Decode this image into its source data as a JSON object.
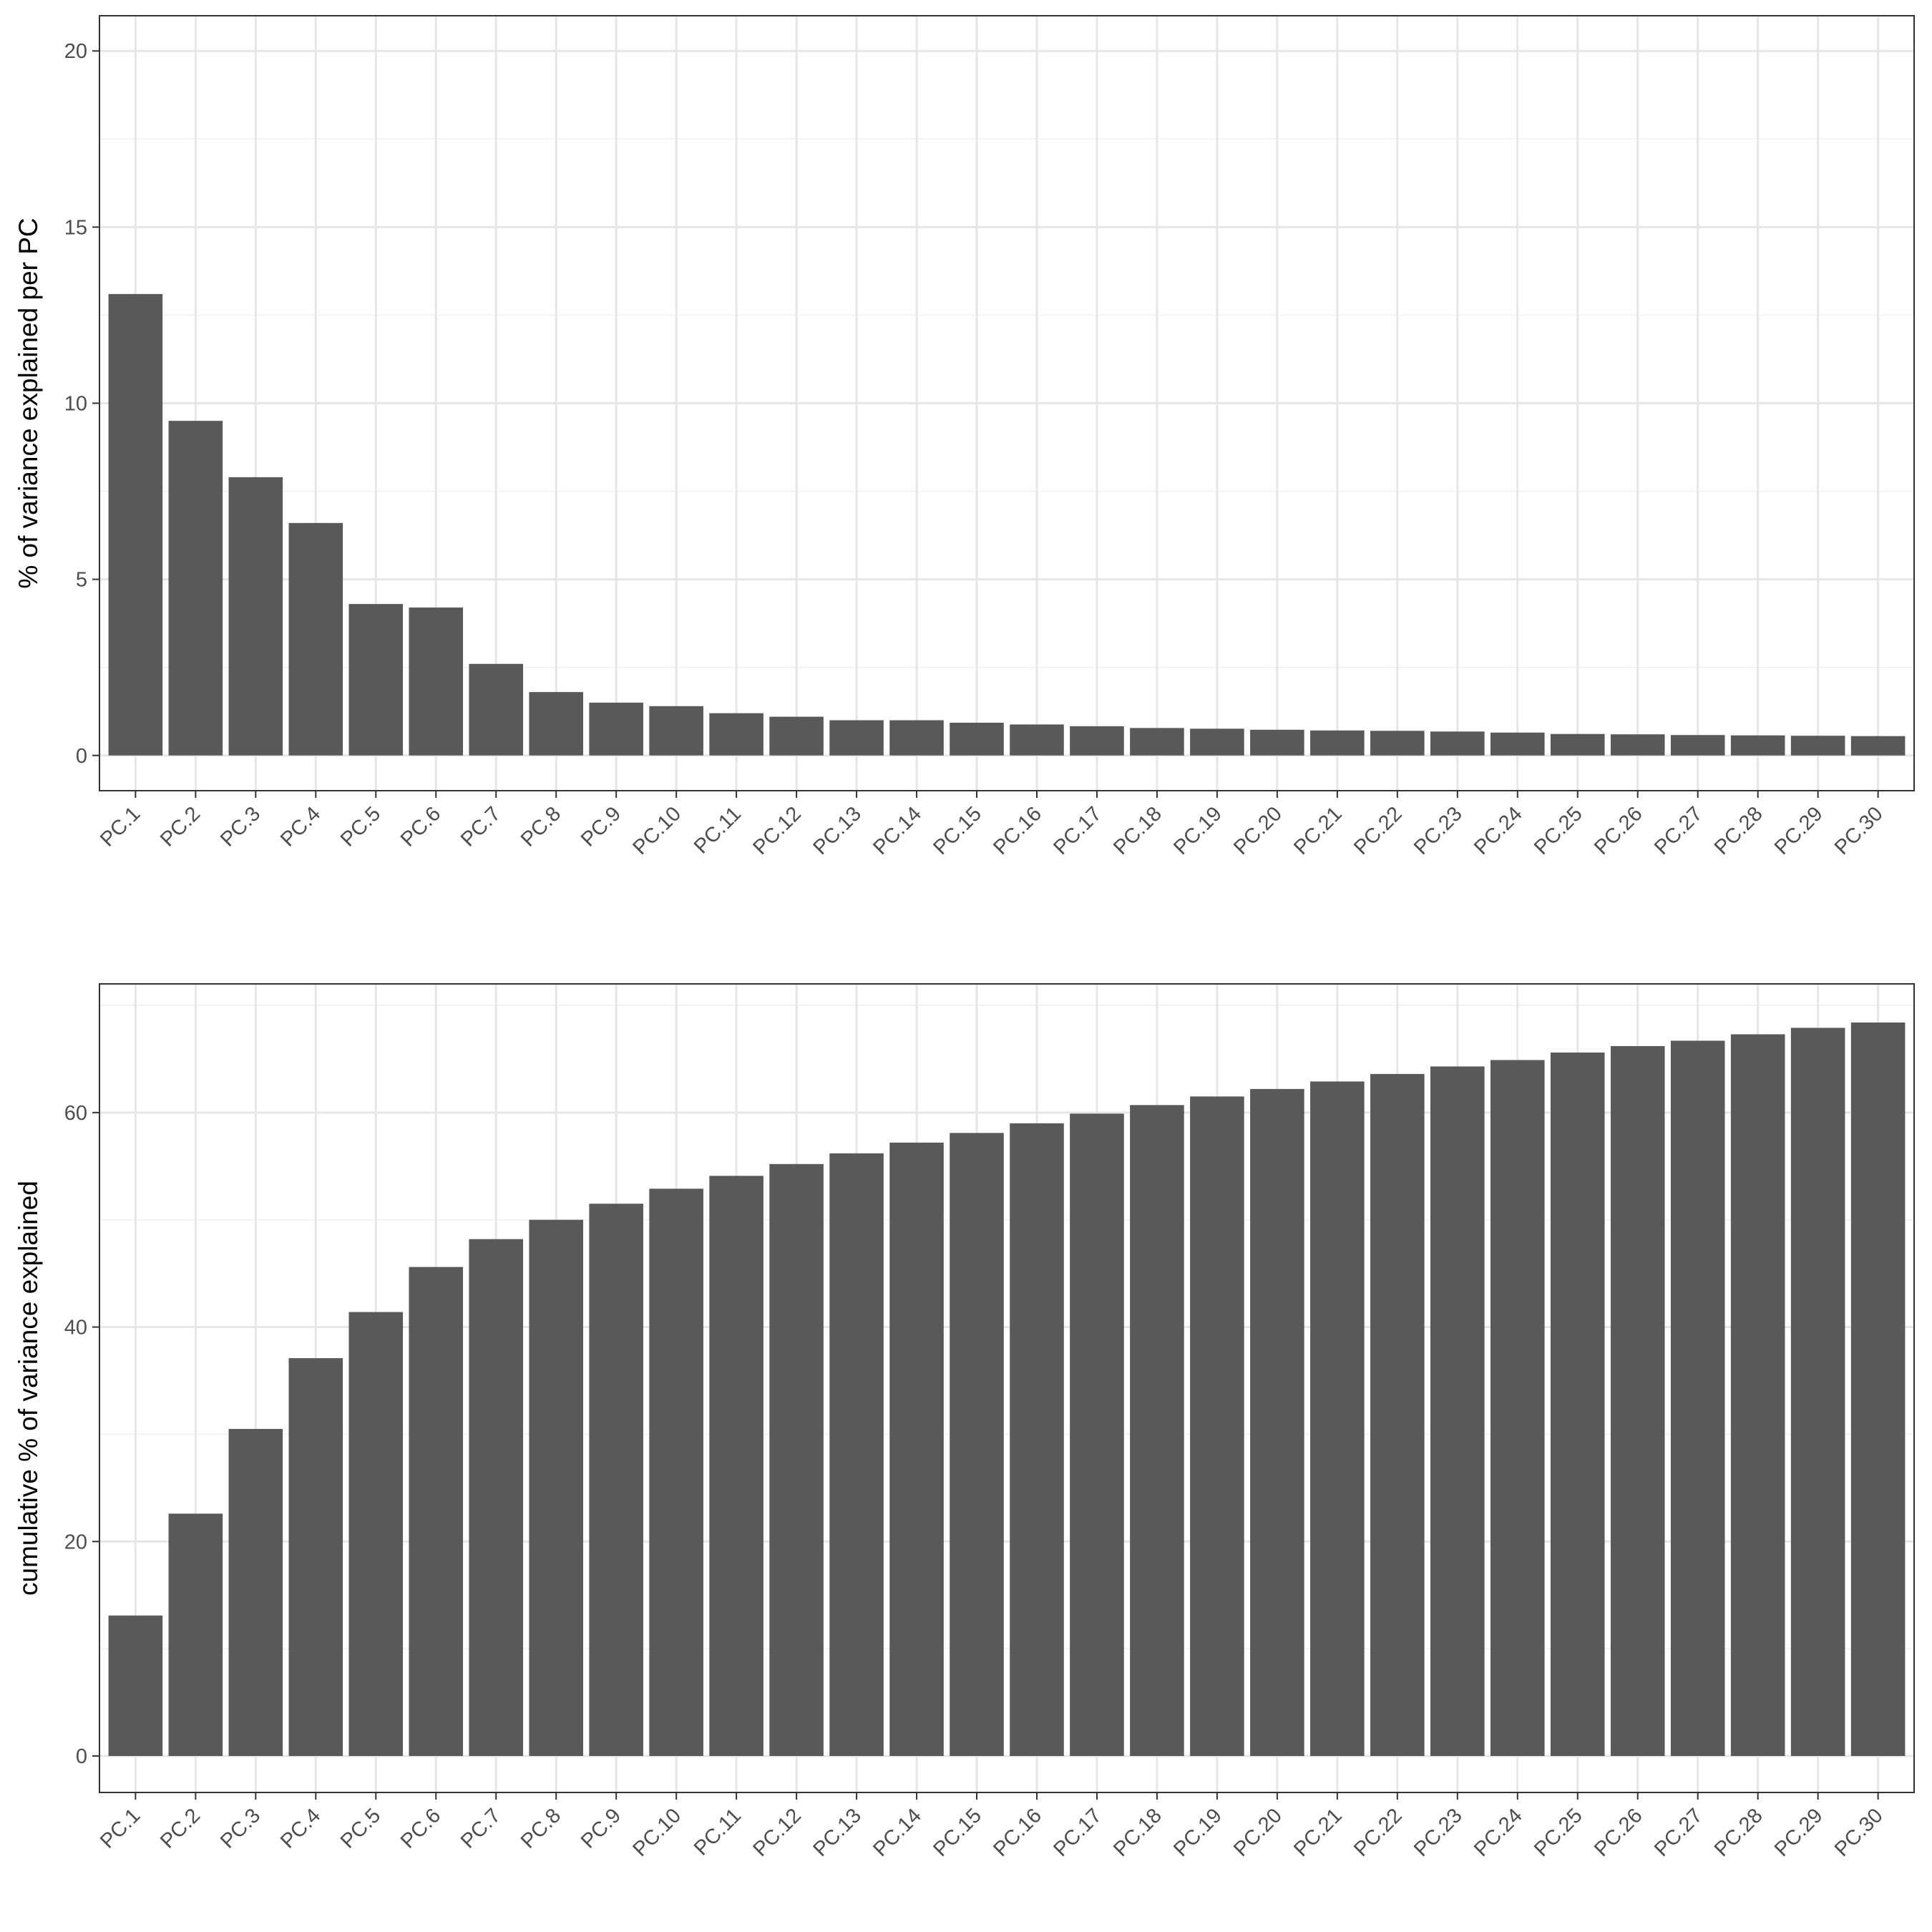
{
  "chart_data": [
    {
      "type": "bar",
      "ylabel": "% of variance explained per PC",
      "xlabel": "",
      "ylim": [
        -1,
        21
      ],
      "yticks": [
        0,
        5,
        10,
        15,
        20
      ],
      "grid": true,
      "bar_color": "#595959",
      "categories": [
        "PC.1",
        "PC.2",
        "PC.3",
        "PC.4",
        "PC.5",
        "PC.6",
        "PC.7",
        "PC.8",
        "PC.9",
        "PC.10",
        "PC.11",
        "PC.12",
        "PC.13",
        "PC.14",
        "PC.15",
        "PC.16",
        "PC.17",
        "PC.18",
        "PC.19",
        "PC.20",
        "PC.21",
        "PC.22",
        "PC.23",
        "PC.24",
        "PC.25",
        "PC.26",
        "PC.27",
        "PC.28",
        "PC.29",
        "PC.30"
      ],
      "values": [
        13.1,
        9.5,
        7.9,
        6.6,
        4.3,
        4.2,
        2.6,
        1.8,
        1.5,
        1.4,
        1.2,
        1.1,
        1.0,
        1.0,
        0.93,
        0.88,
        0.83,
        0.78,
        0.76,
        0.73,
        0.71,
        0.7,
        0.68,
        0.65,
        0.61,
        0.6,
        0.58,
        0.57,
        0.56,
        0.55
      ]
    },
    {
      "type": "bar",
      "ylabel": "cumulative % of variance explained",
      "xlabel": "",
      "ylim": [
        -3.4,
        72
      ],
      "yticks": [
        0,
        20,
        40,
        60
      ],
      "grid": true,
      "bar_color": "#595959",
      "categories": [
        "PC.1",
        "PC.2",
        "PC.3",
        "PC.4",
        "PC.5",
        "PC.6",
        "PC.7",
        "PC.8",
        "PC.9",
        "PC.10",
        "PC.11",
        "PC.12",
        "PC.13",
        "PC.14",
        "PC.15",
        "PC.16",
        "PC.17",
        "PC.18",
        "PC.19",
        "PC.20",
        "PC.21",
        "PC.22",
        "PC.23",
        "PC.24",
        "PC.25",
        "PC.26",
        "PC.27",
        "PC.28",
        "PC.29",
        "PC.30"
      ],
      "values": [
        13.1,
        22.6,
        30.5,
        37.1,
        41.4,
        45.6,
        48.2,
        50.0,
        51.5,
        52.9,
        54.1,
        55.2,
        56.2,
        57.2,
        58.1,
        59.0,
        59.9,
        60.7,
        61.5,
        62.2,
        62.9,
        63.6,
        64.3,
        64.9,
        65.6,
        66.2,
        66.7,
        67.3,
        67.9,
        68.4
      ]
    }
  ]
}
